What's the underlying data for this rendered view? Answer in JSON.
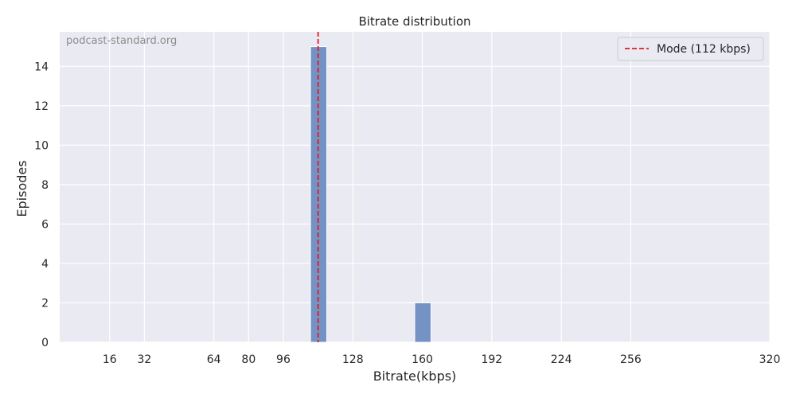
{
  "watermark": "podcast-standard.org",
  "chart_data": {
    "type": "bar",
    "title": "Bitrate distribution",
    "xlabel": "Bitrate(kbps)",
    "ylabel": "Episodes",
    "xlim": [
      -7,
      320
    ],
    "ylim": [
      0,
      15.75
    ],
    "x_ticks": [
      16,
      32,
      64,
      80,
      96,
      128,
      160,
      192,
      224,
      256,
      320
    ],
    "y_ticks": [
      0,
      2,
      4,
      6,
      8,
      10,
      12,
      14
    ],
    "bin_width": 7.5,
    "bars": [
      {
        "x_start": 108.5,
        "x_end": 116,
        "value": 15
      },
      {
        "x_start": 156.5,
        "x_end": 164,
        "value": 2
      }
    ],
    "mode_line": {
      "x": 112,
      "label": "Mode (112 kbps)",
      "color": "#e31a1c",
      "style": "dashed"
    },
    "legend_position": "top-right",
    "grid": true,
    "bar_color": "#7592c4",
    "background_color": "#eaeaf2"
  }
}
